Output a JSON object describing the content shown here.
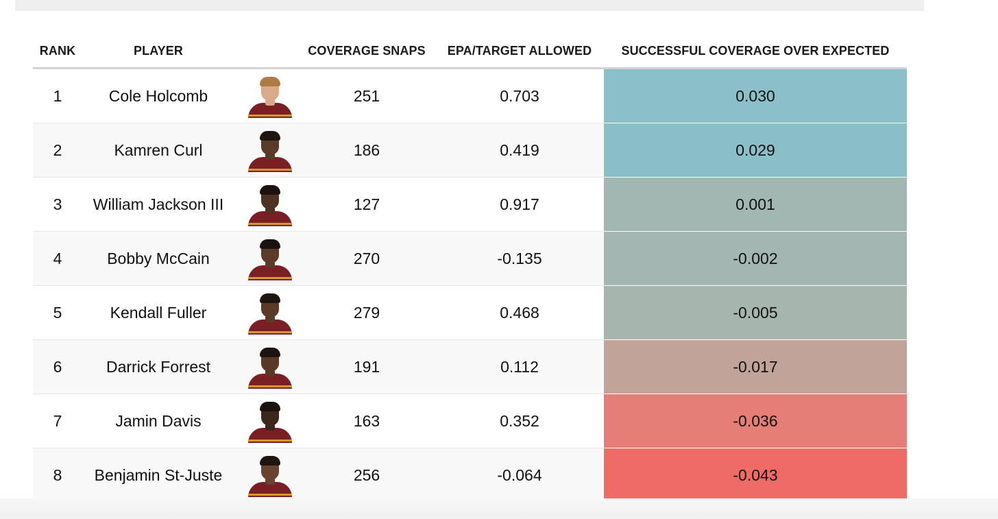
{
  "headers": {
    "rank": "RANK",
    "player": "PLAYER",
    "snaps": "COVERAGE SNAPS",
    "epa": "EPA/TARGET ALLOWED",
    "success": "SUCCESSFUL COVERAGE OVER EXPECTED"
  },
  "rows": [
    {
      "rank": "1",
      "player": "Cole Holcomb",
      "snaps": "251",
      "epa": "0.703",
      "success": "0.030",
      "success_color": "#8bbfc9",
      "skin": "#d9a989",
      "hair": "#b07a44"
    },
    {
      "rank": "2",
      "player": "Kamren Curl",
      "snaps": "186",
      "epa": "0.419",
      "success": "0.029",
      "success_color": "#8bbfc8",
      "skin": "#5a3a28",
      "hair": "#1e1510"
    },
    {
      "rank": "3",
      "player": "William Jackson III",
      "snaps": "127",
      "epa": "0.917",
      "success": "0.001",
      "success_color": "#a3b7b2",
      "skin": "#4e3222",
      "hair": "#1b1210"
    },
    {
      "rank": "4",
      "player": "Bobby McCain",
      "snaps": "270",
      "epa": "-0.135",
      "success": "-0.002",
      "success_color": "#a4b6b1",
      "skin": "#5c3b27",
      "hair": "#1a1210"
    },
    {
      "rank": "5",
      "player": "Kendall Fuller",
      "snaps": "279",
      "epa": "0.468",
      "success": "-0.005",
      "success_color": "#a7b5af",
      "skin": "#5b3a27",
      "hair": "#1e1511"
    },
    {
      "rank": "6",
      "player": "Darrick Forrest",
      "snaps": "191",
      "epa": "0.112",
      "success": "-0.017",
      "success_color": "#c1a39a",
      "skin": "#5a3826",
      "hair": "#1c1410"
    },
    {
      "rank": "7",
      "player": "Jamin Davis",
      "snaps": "163",
      "epa": "0.352",
      "success": "-0.036",
      "success_color": "#e47e76",
      "skin": "#3d271b",
      "hair": "#1a120e"
    },
    {
      "rank": "8",
      "player": "Benjamin St-Juste",
      "snaps": "256",
      "epa": "-0.064",
      "success": "-0.043",
      "success_color": "#ef6b67",
      "skin": "#6a4330",
      "hair": "#1e1511"
    }
  ]
}
